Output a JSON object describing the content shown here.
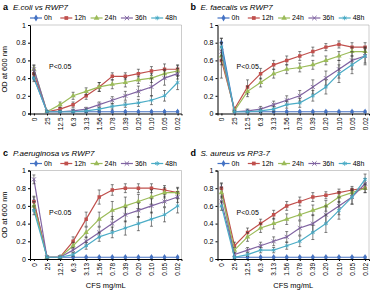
{
  "chart_data": [
    {
      "type": "line",
      "label": "a",
      "title": "E.coli vs RWP7",
      "y_label": "OD at 600 nm",
      "annotation": "P<0.05",
      "categories": [
        "0",
        "25",
        "12.5",
        "6.3",
        "3.13",
        "1.56",
        "0.78",
        "0.39",
        "0.20",
        "0.10",
        "0.05",
        "0.02"
      ],
      "ylim": [
        0,
        1
      ],
      "yticks": [
        0,
        0.2,
        0.4,
        0.6,
        0.8,
        1
      ],
      "series": [
        {
          "name": "0h",
          "color": "#4472c4",
          "marker": "diamond",
          "values": [
            0.4,
            0.02,
            0.02,
            0.02,
            0.02,
            0.02,
            0.02,
            0.02,
            0.02,
            0.02,
            0.02,
            0.02
          ],
          "errors": [
            0.02,
            0.01,
            0.01,
            0.01,
            0.01,
            0.01,
            0.01,
            0.01,
            0.01,
            0.01,
            0.01,
            0.01
          ]
        },
        {
          "name": "12h",
          "color": "#c0504d",
          "marker": "square",
          "values": [
            0.45,
            0.02,
            0.05,
            0.1,
            0.2,
            0.3,
            0.42,
            0.42,
            0.45,
            0.48,
            0.5,
            0.5
          ],
          "errors": [
            0.05,
            0.01,
            0.02,
            0.03,
            0.04,
            0.05,
            0.04,
            0.04,
            0.05,
            0.05,
            0.06,
            0.05
          ]
        },
        {
          "name": "24h",
          "color": "#9bbb59",
          "marker": "triangle",
          "values": [
            0.5,
            0.02,
            0.1,
            0.2,
            0.25,
            0.3,
            0.33,
            0.35,
            0.38,
            0.4,
            0.45,
            0.48
          ],
          "errors": [
            0.04,
            0.01,
            0.03,
            0.04,
            0.04,
            0.05,
            0.05,
            0.05,
            0.04,
            0.05,
            0.05,
            0.06
          ]
        },
        {
          "name": "36h",
          "color": "#8064a2",
          "marker": "x",
          "values": [
            0.5,
            0.02,
            0.02,
            0.03,
            0.05,
            0.1,
            0.15,
            0.2,
            0.25,
            0.3,
            0.4,
            0.45
          ],
          "errors": [
            0.05,
            0.01,
            0.01,
            0.02,
            0.02,
            0.03,
            0.04,
            0.05,
            0.06,
            0.1,
            0.08,
            0.06
          ]
        },
        {
          "name": "48h",
          "color": "#4bacc6",
          "marker": "asterisk",
          "values": [
            0.4,
            0.02,
            0.02,
            0.02,
            0.03,
            0.05,
            0.08,
            0.1,
            0.12,
            0.15,
            0.2,
            0.35
          ],
          "errors": [
            0.04,
            0.01,
            0.01,
            0.01,
            0.02,
            0.02,
            0.03,
            0.03,
            0.04,
            0.05,
            0.06,
            0.08
          ]
        }
      ]
    },
    {
      "type": "line",
      "label": "b",
      "title": "E. faecalis vs RWP7",
      "annotation": "P<0.05",
      "categories": [
        "0",
        "25",
        "12.5",
        "6.3",
        "3.13",
        "1.56",
        "0.78",
        "0.39",
        "0.20",
        "0.10",
        "0.05",
        "0.02"
      ],
      "ylim": [
        0,
        1
      ],
      "yticks": [
        0,
        0.2,
        0.4,
        0.6,
        0.8,
        1
      ],
      "series": [
        {
          "name": "0h",
          "color": "#4472c4",
          "marker": "diamond",
          "values": [
            0.8,
            0.02,
            0.02,
            0.02,
            0.02,
            0.02,
            0.02,
            0.02,
            0.02,
            0.02,
            0.02,
            0.02
          ],
          "errors": [
            0.05,
            0.01,
            0.01,
            0.01,
            0.01,
            0.01,
            0.01,
            0.01,
            0.01,
            0.01,
            0.01,
            0.01
          ]
        },
        {
          "name": "12h",
          "color": "#c0504d",
          "marker": "square",
          "values": [
            0.6,
            0.05,
            0.3,
            0.45,
            0.55,
            0.6,
            0.65,
            0.7,
            0.75,
            0.78,
            0.75,
            0.75
          ],
          "errors": [
            0.2,
            0.02,
            0.08,
            0.06,
            0.05,
            0.05,
            0.05,
            0.05,
            0.04,
            0.04,
            0.05,
            0.05
          ]
        },
        {
          "name": "24h",
          "color": "#9bbb59",
          "marker": "triangle",
          "values": [
            0.65,
            0.03,
            0.25,
            0.35,
            0.45,
            0.5,
            0.52,
            0.55,
            0.6,
            0.65,
            0.7,
            0.7
          ],
          "errors": [
            0.1,
            0.01,
            0.06,
            0.05,
            0.05,
            0.05,
            0.05,
            0.05,
            0.05,
            0.05,
            0.05,
            0.05
          ]
        },
        {
          "name": "36h",
          "color": "#8064a2",
          "marker": "x",
          "values": [
            0.7,
            0.02,
            0.03,
            0.05,
            0.1,
            0.15,
            0.2,
            0.3,
            0.4,
            0.5,
            0.6,
            0.65
          ],
          "errors": [
            0.1,
            0.01,
            0.02,
            0.03,
            0.04,
            0.05,
            0.06,
            0.08,
            0.08,
            0.1,
            0.1,
            0.08
          ]
        },
        {
          "name": "48h",
          "color": "#4bacc6",
          "marker": "asterisk",
          "values": [
            0.75,
            0.02,
            0.02,
            0.03,
            0.05,
            0.1,
            0.12,
            0.2,
            0.3,
            0.45,
            0.55,
            0.65
          ],
          "errors": [
            0.1,
            0.01,
            0.01,
            0.02,
            0.03,
            0.04,
            0.05,
            0.06,
            0.08,
            0.1,
            0.1,
            0.1
          ]
        }
      ]
    },
    {
      "type": "line",
      "label": "c",
      "title": "P.aeruginosa vs RWP7",
      "y_label": "OD at 600 nm",
      "x_label": "CFS mg/mL",
      "annotation": "P<0.05",
      "categories": [
        "0",
        "25",
        "12.5",
        "6.3",
        "3.13",
        "1.56",
        "0.78",
        "0.39",
        "0.20",
        "0.10",
        "0.05",
        "0.02"
      ],
      "ylim": [
        0,
        1
      ],
      "yticks": [
        0,
        0.2,
        0.4,
        0.6,
        0.8,
        1
      ],
      "series": [
        {
          "name": "0h",
          "color": "#4472c4",
          "marker": "diamond",
          "values": [
            0.65,
            0.02,
            0.02,
            0.02,
            0.02,
            0.02,
            0.02,
            0.02,
            0.02,
            0.02,
            0.02,
            0.02
          ],
          "errors": [
            0.05,
            0.01,
            0.01,
            0.01,
            0.01,
            0.01,
            0.01,
            0.01,
            0.01,
            0.01,
            0.01,
            0.01
          ]
        },
        {
          "name": "12h",
          "color": "#c0504d",
          "marker": "square",
          "values": [
            0.65,
            0.02,
            0.02,
            0.2,
            0.45,
            0.7,
            0.78,
            0.8,
            0.8,
            0.8,
            0.78,
            0.75
          ],
          "errors": [
            0.06,
            0.01,
            0.01,
            0.05,
            0.08,
            0.08,
            0.06,
            0.05,
            0.05,
            0.05,
            0.05,
            0.05
          ]
        },
        {
          "name": "24h",
          "color": "#9bbb59",
          "marker": "triangle",
          "values": [
            0.6,
            0.02,
            0.02,
            0.15,
            0.3,
            0.45,
            0.55,
            0.6,
            0.65,
            0.7,
            0.75,
            0.75
          ],
          "errors": [
            0.05,
            0.01,
            0.01,
            0.04,
            0.06,
            0.08,
            0.1,
            0.1,
            0.08,
            0.08,
            0.06,
            0.06
          ]
        },
        {
          "name": "36h",
          "color": "#8064a2",
          "marker": "x",
          "values": [
            0.9,
            0.02,
            0.02,
            0.1,
            0.2,
            0.3,
            0.4,
            0.5,
            0.55,
            0.6,
            0.65,
            0.7
          ],
          "errors": [
            0.05,
            0.01,
            0.01,
            0.03,
            0.05,
            0.06,
            0.08,
            0.08,
            0.08,
            0.08,
            0.06,
            0.06
          ]
        },
        {
          "name": "48h",
          "color": "#4bacc6",
          "marker": "asterisk",
          "values": [
            0.55,
            0.02,
            0.02,
            0.05,
            0.15,
            0.25,
            0.3,
            0.35,
            0.4,
            0.45,
            0.5,
            0.6
          ],
          "errors": [
            0.05,
            0.01,
            0.01,
            0.02,
            0.04,
            0.05,
            0.06,
            0.08,
            0.08,
            0.08,
            0.08,
            0.08
          ]
        }
      ]
    },
    {
      "type": "line",
      "label": "d",
      "title": "S. aureus vs RP3-7",
      "x_label": "CFS mg/mL",
      "annotation": "P<0.05",
      "categories": [
        "0",
        "25",
        "12.5",
        "6.3",
        "3.13",
        "1.56",
        "0.78",
        "0.39",
        "0.20",
        "0.10",
        "0.05",
        "0.02"
      ],
      "ylim": [
        0,
        1
      ],
      "yticks": [
        0,
        0.2,
        0.4,
        0.6,
        0.8,
        1
      ],
      "series": [
        {
          "name": "0h",
          "color": "#4472c4",
          "marker": "diamond",
          "values": [
            0.8,
            0.02,
            0.02,
            0.02,
            0.02,
            0.02,
            0.02,
            0.02,
            0.02,
            0.02,
            0.02,
            0.02
          ],
          "errors": [
            0.05,
            0.01,
            0.01,
            0.01,
            0.01,
            0.01,
            0.01,
            0.01,
            0.01,
            0.01,
            0.01,
            0.01
          ]
        },
        {
          "name": "12h",
          "color": "#c0504d",
          "marker": "square",
          "values": [
            0.8,
            0.15,
            0.3,
            0.4,
            0.5,
            0.6,
            0.65,
            0.7,
            0.72,
            0.75,
            0.78,
            0.8
          ],
          "errors": [
            0.06,
            0.04,
            0.05,
            0.05,
            0.05,
            0.05,
            0.05,
            0.05,
            0.04,
            0.04,
            0.04,
            0.05
          ]
        },
        {
          "name": "24h",
          "color": "#9bbb59",
          "marker": "triangle",
          "values": [
            0.75,
            0.1,
            0.25,
            0.35,
            0.4,
            0.45,
            0.5,
            0.55,
            0.6,
            0.7,
            0.75,
            0.8
          ],
          "errors": [
            0.06,
            0.03,
            0.05,
            0.05,
            0.06,
            0.06,
            0.06,
            0.06,
            0.06,
            0.06,
            0.05,
            0.05
          ]
        },
        {
          "name": "36h",
          "color": "#8064a2",
          "marker": "x",
          "values": [
            0.65,
            0.05,
            0.1,
            0.15,
            0.2,
            0.25,
            0.35,
            0.4,
            0.5,
            0.6,
            0.7,
            0.85
          ],
          "errors": [
            0.06,
            0.02,
            0.03,
            0.04,
            0.05,
            0.06,
            0.08,
            0.1,
            0.1,
            0.1,
            0.08,
            0.06
          ]
        },
        {
          "name": "48h",
          "color": "#4bacc6",
          "marker": "asterisk",
          "values": [
            0.6,
            0.02,
            0.05,
            0.1,
            0.1,
            0.15,
            0.2,
            0.3,
            0.4,
            0.55,
            0.7,
            0.9
          ],
          "errors": [
            0.05,
            0.01,
            0.02,
            0.03,
            0.03,
            0.04,
            0.06,
            0.08,
            0.1,
            0.1,
            0.08,
            0.06
          ]
        }
      ]
    }
  ]
}
